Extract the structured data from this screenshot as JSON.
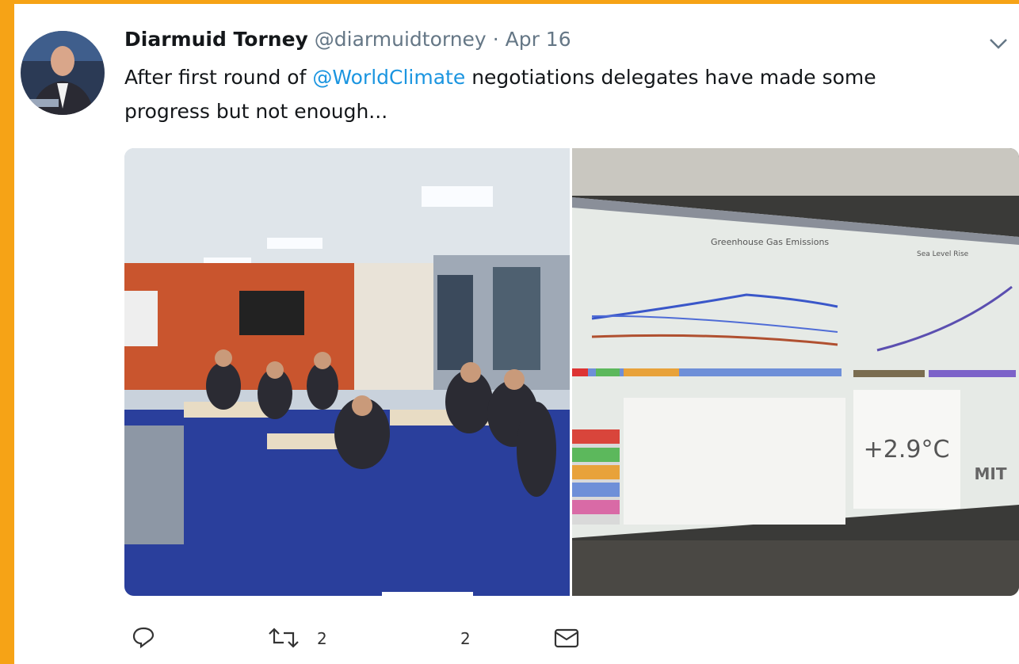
{
  "tweet": {
    "author_name": "Diarmuid Torney",
    "handle": "@diarmuidtorney",
    "separator": "·",
    "date": "Apr 16",
    "text": {
      "before": "After first round of",
      "mention": "@WorldClimate",
      "after_line1": "negotiations delegates have made some",
      "line2": "progress but not enough..."
    },
    "screen_photo": {
      "chart_left_title": "Greenhouse Gas Emissions",
      "chart_right_title": "Sea Level Rise",
      "temperature": "+2.9°C",
      "logo": "MIT"
    },
    "actions": {
      "retweets": 2,
      "likes": 2
    }
  }
}
